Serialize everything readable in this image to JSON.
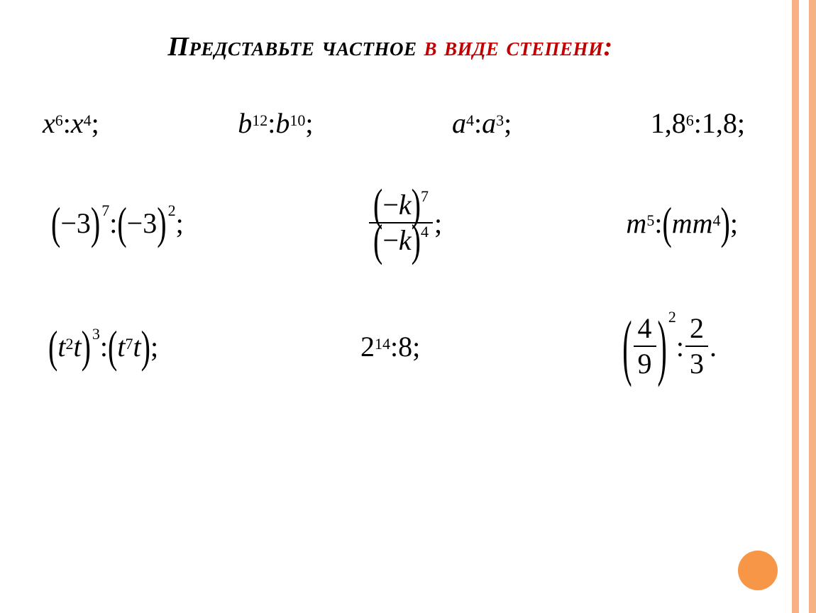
{
  "title": {
    "part1": "Представьте частное ",
    "part2": "в виде степени:",
    "color1": "#000000",
    "color2": "#c00000",
    "fontsize_pt": 28,
    "font_style": "italic bold small-caps"
  },
  "theme": {
    "accent_color": "#f79646",
    "accent_light": "#f8b185",
    "background": "#ffffff",
    "text_color": "#000000"
  },
  "expressions": {
    "font_family": "Times New Roman",
    "font_size_pt": 30,
    "row1": [
      {
        "latex": "x^6 : x^4;",
        "base": "x",
        "exp1": "6",
        "exp2": "4"
      },
      {
        "latex": "b^{12} : b^{10};",
        "base": "b",
        "exp1": "12",
        "exp2": "10"
      },
      {
        "latex": "a^4 : a^3;",
        "base": "a",
        "exp1": "4",
        "exp2": "3"
      },
      {
        "latex": "1,8^6 : 1,8;",
        "base_num": "1,8",
        "exp1": "6"
      }
    ],
    "row2": [
      {
        "latex": "(-3)^7 : (-3)^2;",
        "inner": "−3",
        "exp1": "7",
        "exp2": "2"
      },
      {
        "latex": "\\frac{(-k)^7}{(-k)^4};",
        "num_inner": "−k",
        "num_exp": "7",
        "den_inner": "−k",
        "den_exp": "4"
      },
      {
        "latex": "m^5 : (m m^4);",
        "exp_out": "5",
        "inner_base1": "m",
        "inner_base2": "m",
        "inner_exp": "4"
      }
    ],
    "row3": [
      {
        "latex": "(t^2 t)^3 : (t^7 t);",
        "a_base": "t",
        "a_exp": "2",
        "b_base": "t",
        "group_exp": "3",
        "c_base": "t",
        "c_exp": "7",
        "d_base": "t"
      },
      {
        "latex": "2^{14} : 8;",
        "base": "2",
        "exp": "14",
        "divisor": "8"
      },
      {
        "latex": "(4/9)^2 : 2/3.",
        "frac1_num": "4",
        "frac1_den": "9",
        "exp": "2",
        "frac2_num": "2",
        "frac2_den": "3"
      }
    ]
  },
  "glyphs": {
    "colon": " : ",
    "semicolon": ";",
    "period": ".",
    "minus": "−"
  }
}
